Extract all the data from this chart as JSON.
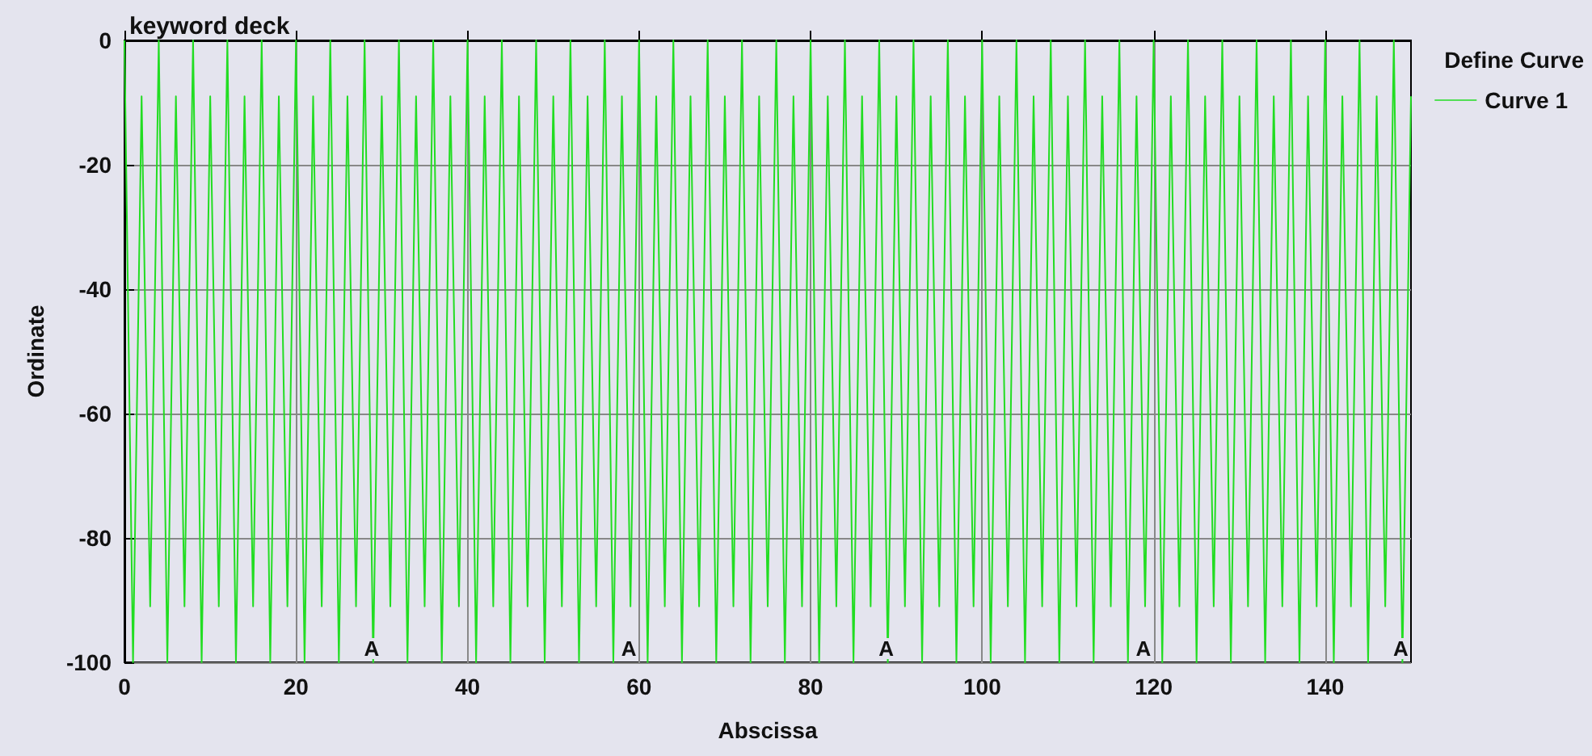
{
  "chart_data": {
    "type": "line",
    "title": "keyword deck",
    "xlabel": "Abscissa",
    "ylabel": "Ordinate",
    "legend_title": "Define Curve",
    "legend": "top right",
    "grid": true,
    "marker": "none",
    "line_style": "solid",
    "xlim": [
      0,
      150
    ],
    "xticks": [
      0,
      20,
      40,
      60,
      80,
      100,
      120,
      140
    ],
    "ylim": [
      -100,
      0
    ],
    "yticks": [
      -100,
      -80,
      -60,
      -40,
      -20,
      0
    ],
    "annotations": [
      "A",
      "A",
      "A",
      "A",
      "A"
    ],
    "x": [
      0,
      1,
      2,
      3,
      4,
      5,
      6,
      7,
      8,
      9,
      10,
      11,
      12,
      13,
      14,
      15,
      16,
      17,
      18,
      19,
      20,
      21,
      22,
      23,
      24,
      25,
      26,
      27,
      28,
      29,
      30,
      31,
      32,
      33,
      34,
      35,
      36,
      37,
      38,
      39,
      40,
      41,
      42,
      43,
      44,
      45,
      46,
      47,
      48,
      49,
      50,
      51,
      52,
      53,
      54,
      55,
      56,
      57,
      58,
      59,
      60,
      61,
      62,
      63,
      64,
      65,
      66,
      67,
      68,
      69,
      70,
      71,
      72,
      73,
      74,
      75,
      76,
      77,
      78,
      79,
      80,
      81,
      82,
      83,
      84,
      85,
      86,
      87,
      88,
      89,
      90,
      91,
      92,
      93,
      94,
      95,
      96,
      97,
      98,
      99,
      100,
      101,
      102,
      103,
      104,
      105,
      106,
      107,
      108,
      109,
      110,
      111,
      112,
      113,
      114,
      115,
      116,
      117,
      118,
      119,
      120,
      121,
      122,
      123,
      124,
      125,
      126,
      127,
      128,
      129,
      130,
      131,
      132,
      133,
      134,
      135,
      136,
      137,
      138,
      139,
      140,
      141,
      142,
      143,
      144,
      145,
      146,
      147,
      148,
      149,
      150
    ],
    "series": [
      {
        "name": "Curve 1",
        "color": "#22dd22",
        "values": [
          0,
          -100,
          -9,
          -91,
          0,
          -100,
          -9,
          -91,
          0,
          -100,
          -9,
          -91,
          0,
          -100,
          -9,
          -91,
          0,
          -100,
          -9,
          -91,
          0,
          -100,
          -9,
          -91,
          0,
          -100,
          -9,
          -91,
          0,
          -100,
          -9,
          -91,
          0,
          -100,
          -9,
          -91,
          0,
          -100,
          -9,
          -91,
          0,
          -100,
          -9,
          -91,
          0,
          -100,
          -9,
          -91,
          0,
          -100,
          -9,
          -91,
          0,
          -100,
          -9,
          -91,
          0,
          -100,
          -9,
          -91,
          0,
          -100,
          -9,
          -91,
          0,
          -100,
          -9,
          -91,
          0,
          -100,
          -9,
          -91,
          0,
          -100,
          -9,
          -91,
          0,
          -100,
          -9,
          -91,
          0,
          -100,
          -9,
          -91,
          0,
          -100,
          -9,
          -91,
          0,
          -100,
          -9,
          -91,
          0,
          -100,
          -9,
          -91,
          0,
          -100,
          -9,
          -91,
          0,
          -100,
          -9,
          -91,
          0,
          -100,
          -9,
          -91,
          0,
          -100,
          -9,
          -91,
          0,
          -100,
          -9,
          -91,
          0,
          -100,
          -9,
          -91,
          0,
          -100,
          -9,
          -91,
          0,
          -100,
          -9,
          -91,
          0,
          -100,
          -9,
          -91,
          0,
          -100,
          -9,
          -91,
          0,
          -100,
          -9,
          -91,
          0,
          -100,
          -9,
          -91,
          0,
          -100,
          -9,
          -91,
          0,
          -100,
          -9
        ]
      }
    ]
  }
}
